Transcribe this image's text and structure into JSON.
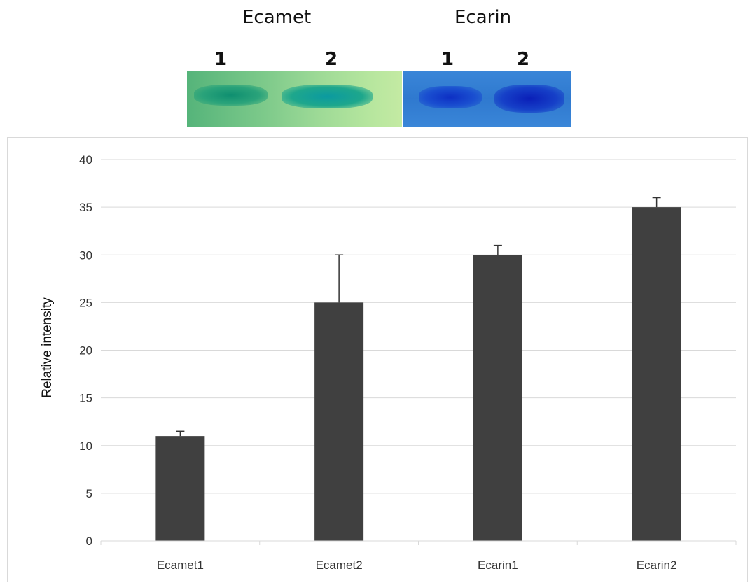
{
  "gel": {
    "panels": [
      {
        "title": "Ecamet",
        "lanes": [
          "1",
          "2"
        ]
      },
      {
        "title": "Ecarin",
        "lanes": [
          "1",
          "2"
        ]
      }
    ]
  },
  "chart_data": {
    "type": "bar",
    "categories": [
      "Ecamet1",
      "Ecamet2",
      "Ecarin1",
      "Ecarin2"
    ],
    "values": [
      11,
      25,
      30,
      35
    ],
    "error_plus": [
      0.5,
      5,
      1,
      1
    ],
    "title": "",
    "xlabel": "",
    "ylabel": "Relative intensity",
    "ylim": [
      0,
      40
    ],
    "yticks": [
      0,
      5,
      10,
      15,
      20,
      25,
      30,
      35,
      40
    ],
    "grid": true,
    "legend": "none",
    "bar_color": "#404040",
    "grid_color": "#d9d9d9"
  }
}
